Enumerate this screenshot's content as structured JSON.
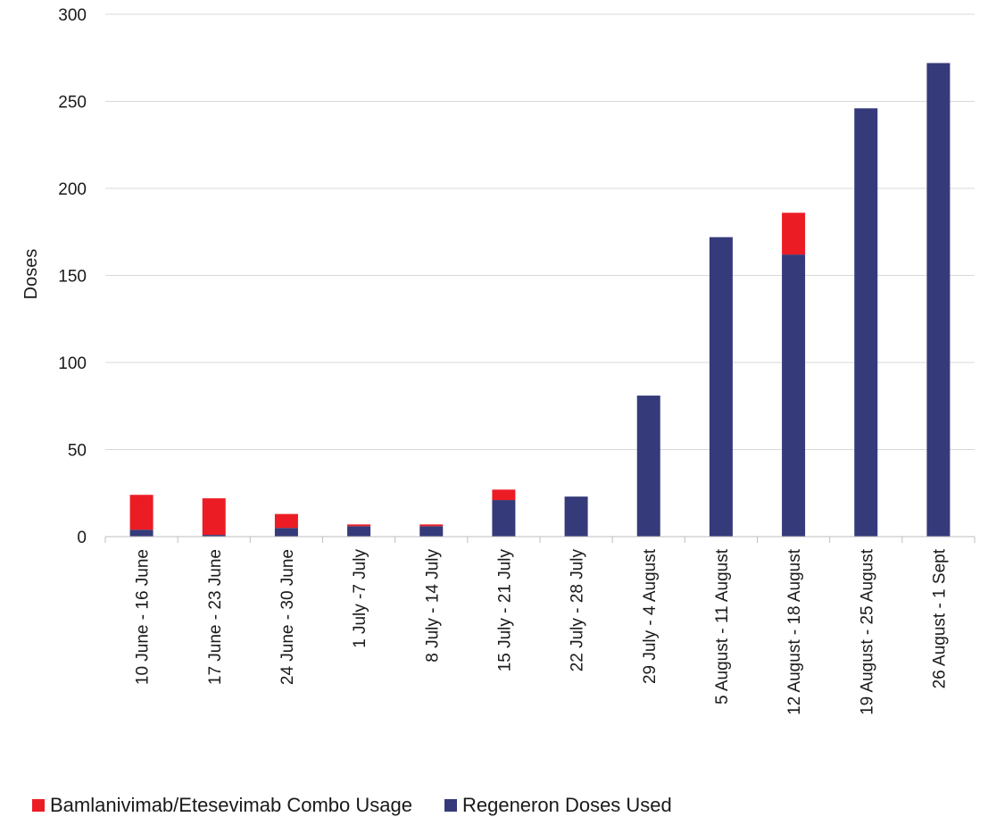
{
  "chart_data": {
    "type": "bar",
    "stacked": true,
    "ylabel": "Doses",
    "ylim": [
      0,
      300
    ],
    "yticks": [
      0,
      50,
      100,
      150,
      200,
      250,
      300
    ],
    "grid": true,
    "legend_position": "bottom-left",
    "categories": [
      "10 June - 16 June",
      "17 June - 23 June",
      "24 June - 30 June",
      "1 July -7 July",
      "8 July - 14 July",
      "15 July - 21 July",
      "22 July - 28 July",
      "29 July - 4 August",
      "5 August - 11 August",
      "12 August - 18 August",
      "19 August - 25 August",
      "26 August - 1 Sept"
    ],
    "series": [
      {
        "name": "Regeneron Doses Used",
        "color": "#353a7a",
        "values": [
          4,
          1,
          5,
          6,
          6,
          21,
          23,
          81,
          172,
          162,
          246,
          272
        ]
      },
      {
        "name": "Bamlanivimab/Etesevimab Combo Usage",
        "color": "#ec1c24",
        "values": [
          20,
          21,
          8,
          1,
          1,
          6,
          0,
          0,
          0,
          24,
          0,
          0
        ]
      }
    ],
    "legend_order": [
      1,
      0
    ]
  }
}
